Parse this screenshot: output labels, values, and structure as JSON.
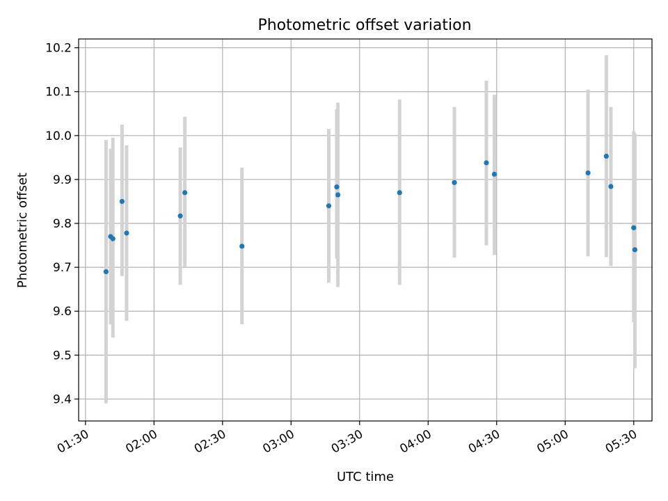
{
  "chart_data": {
    "type": "scatter",
    "title": "Photometric offset variation",
    "xlabel": "UTC time",
    "ylabel": "Photometric offset",
    "xlim": [
      "01:27",
      "05:38"
    ],
    "ylim": [
      9.35,
      10.22
    ],
    "x_ticks": [
      "01:30",
      "02:00",
      "02:30",
      "03:00",
      "03:30",
      "04:00",
      "04:30",
      "05:00",
      "05:30"
    ],
    "y_ticks": [
      "9.4",
      "9.5",
      "9.6",
      "9.7",
      "9.8",
      "9.9",
      "10.0",
      "10.1",
      "10.2"
    ],
    "grid": true,
    "colors": {
      "points": "#1f77b4",
      "error_bars": "#d3d3d3",
      "grid": "#b0b0b0"
    },
    "points": [
      {
        "x": "01:39:00",
        "y": 9.69,
        "ylow": 9.39,
        "yhigh": 9.99
      },
      {
        "x": "01:41:00",
        "y": 9.77,
        "ylow": 9.57,
        "yhigh": 9.97
      },
      {
        "x": "01:42:00",
        "y": 9.765,
        "ylow": 9.54,
        "yhigh": 9.995
      },
      {
        "x": "01:46:00",
        "y": 9.85,
        "ylow": 9.68,
        "yhigh": 10.025
      },
      {
        "x": "01:48:00",
        "y": 9.778,
        "ylow": 9.578,
        "yhigh": 9.978
      },
      {
        "x": "02:11:30",
        "y": 9.817,
        "ylow": 9.66,
        "yhigh": 9.973
      },
      {
        "x": "02:13:30",
        "y": 9.87,
        "ylow": 9.7,
        "yhigh": 10.043
      },
      {
        "x": "02:38:30",
        "y": 9.748,
        "ylow": 9.57,
        "yhigh": 9.927
      },
      {
        "x": "03:16:30",
        "y": 9.84,
        "ylow": 9.665,
        "yhigh": 10.015
      },
      {
        "x": "03:20:00",
        "y": 9.883,
        "ylow": 9.72,
        "yhigh": 10.06
      },
      {
        "x": "03:20:30",
        "y": 9.865,
        "ylow": 9.655,
        "yhigh": 10.075
      },
      {
        "x": "03:47:30",
        "y": 9.87,
        "ylow": 9.66,
        "yhigh": 10.082
      },
      {
        "x": "04:11:30",
        "y": 9.893,
        "ylow": 9.722,
        "yhigh": 10.065
      },
      {
        "x": "04:25:30",
        "y": 9.938,
        "ylow": 9.75,
        "yhigh": 10.125
      },
      {
        "x": "04:29:00",
        "y": 9.912,
        "ylow": 9.728,
        "yhigh": 10.093
      },
      {
        "x": "05:10:00",
        "y": 9.915,
        "ylow": 9.725,
        "yhigh": 10.105
      },
      {
        "x": "05:18:00",
        "y": 9.953,
        "ylow": 9.723,
        "yhigh": 10.183
      },
      {
        "x": "05:20:00",
        "y": 9.884,
        "ylow": 9.703,
        "yhigh": 10.065
      },
      {
        "x": "05:30:00",
        "y": 9.79,
        "ylow": 9.575,
        "yhigh": 10.01
      },
      {
        "x": "05:30:30",
        "y": 9.74,
        "ylow": 9.47,
        "yhigh": 10.005
      }
    ]
  }
}
